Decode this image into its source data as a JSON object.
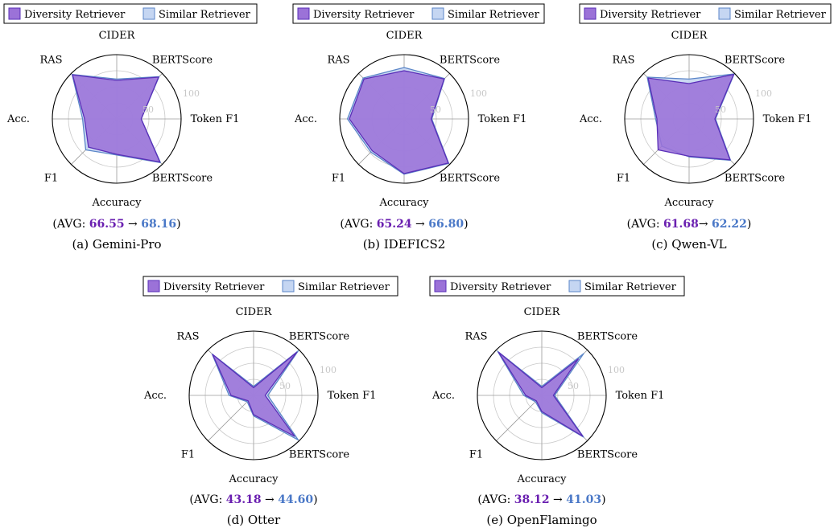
{
  "chart_data": [
    {
      "type": "radar",
      "caption": "(a) Gemini-Pro",
      "axes": [
        "CIDER",
        "BERTScore",
        "Token F1",
        "BERTScore",
        "Accuracy",
        "F1",
        "Acc.",
        "RAS"
      ],
      "rlim": [
        0,
        100
      ],
      "ticks": [
        "50",
        "100"
      ],
      "series": [
        {
          "name": "Diversity Retriever",
          "color": "#7b3fc9",
          "values": [
            60,
            92,
            38,
            95,
            55,
            62,
            50,
            97
          ]
        },
        {
          "name": "Similar Retriever",
          "color": "#4a78c7",
          "values": [
            62,
            93,
            38,
            96,
            56,
            68,
            53,
            98
          ]
        }
      ],
      "avg": {
        "prefix": "(AVG: ",
        "from": "66.55",
        "arrow": " → ",
        "to": "68.16",
        "suffix": ")"
      }
    },
    {
      "type": "radar",
      "caption": "(b) IDEFICS2",
      "axes": [
        "CIDER",
        "BERTScore",
        "Token F1",
        "BERTScore",
        "Accuracy",
        "F1",
        "Acc.",
        "RAS"
      ],
      "rlim": [
        0,
        100
      ],
      "ticks": [
        "50",
        "100"
      ],
      "series": [
        {
          "name": "Diversity Retriever",
          "color": "#7b3fc9",
          "values": [
            75,
            88,
            42,
            97,
            85,
            70,
            85,
            88
          ]
        },
        {
          "name": "Similar Retriever",
          "color": "#4a78c7",
          "values": [
            80,
            89,
            43,
            98,
            86,
            73,
            88,
            90
          ]
        }
      ],
      "avg": {
        "prefix": "(AVG: ",
        "from": "65.24",
        "arrow": " → ",
        "to": "66.80",
        "suffix": ")"
      }
    },
    {
      "type": "radar",
      "caption": "(c) Qwen-VL",
      "axes": [
        "CIDER",
        "BERTScore",
        "Token F1",
        "BERTScore",
        "Accuracy",
        "F1",
        "Acc.",
        "RAS"
      ],
      "rlim": [
        0,
        100
      ],
      "ticks": [
        "50",
        "100"
      ],
      "series": [
        {
          "name": "Diversity Retriever",
          "color": "#7b3fc9",
          "values": [
            55,
            98,
            40,
            90,
            58,
            68,
            50,
            90
          ]
        },
        {
          "name": "Similar Retriever",
          "color": "#4a78c7",
          "values": [
            62,
            99,
            41,
            91,
            59,
            60,
            52,
            92
          ]
        }
      ],
      "avg": {
        "prefix": "(AVG: ",
        "from": "61.68",
        "arrow": "→ ",
        "to": "62.22",
        "suffix": ")"
      }
    },
    {
      "type": "radar",
      "caption": "(d) Otter",
      "axes": [
        "CIDER",
        "BERTScore",
        "Token F1",
        "BERTScore",
        "Accuracy",
        "F1",
        "Acc.",
        "RAS"
      ],
      "rlim": [
        0,
        100
      ],
      "ticks": [
        "50",
        "100"
      ],
      "series": [
        {
          "name": "Diversity Retriever",
          "color": "#7b3fc9",
          "values": [
            12,
            95,
            18,
            90,
            30,
            12,
            35,
            90
          ]
        },
        {
          "name": "Similar Retriever",
          "color": "#4a78c7",
          "values": [
            14,
            98,
            22,
            98,
            32,
            14,
            38,
            91
          ]
        }
      ],
      "avg": {
        "prefix": "(AVG: ",
        "from": "43.18",
        "arrow": " → ",
        "to": "44.60",
        "suffix": ")"
      }
    },
    {
      "type": "radar",
      "caption": "(e) OpenFlamingo",
      "axes": [
        "CIDER",
        "BERTScore",
        "Token F1",
        "BERTScore",
        "Accuracy",
        "F1",
        "Acc.",
        "RAS"
      ],
      "rlim": [
        0,
        100
      ],
      "ticks": [
        "50",
        "100"
      ],
      "series": [
        {
          "name": "Diversity Retriever",
          "color": "#7b3fc9",
          "values": [
            12,
            80,
            18,
            90,
            25,
            12,
            25,
            95
          ]
        },
        {
          "name": "Similar Retriever",
          "color": "#4a78c7",
          "values": [
            14,
            92,
            20,
            92,
            27,
            14,
            28,
            97
          ]
        }
      ],
      "avg": {
        "prefix": "(AVG: ",
        "from": "38.12",
        "arrow": " → ",
        "to": "41.03",
        "suffix": ")"
      }
    }
  ],
  "colors": {
    "diversity_fill": "#9b72d8",
    "diversity_line": "#5a2fb8",
    "similar_fill": "#c5d6f2",
    "similar_line": "#5b86c8",
    "avg_from": "#6a1fb0",
    "avg_to": "#4a78c7",
    "grid": "#9a9a9a"
  }
}
